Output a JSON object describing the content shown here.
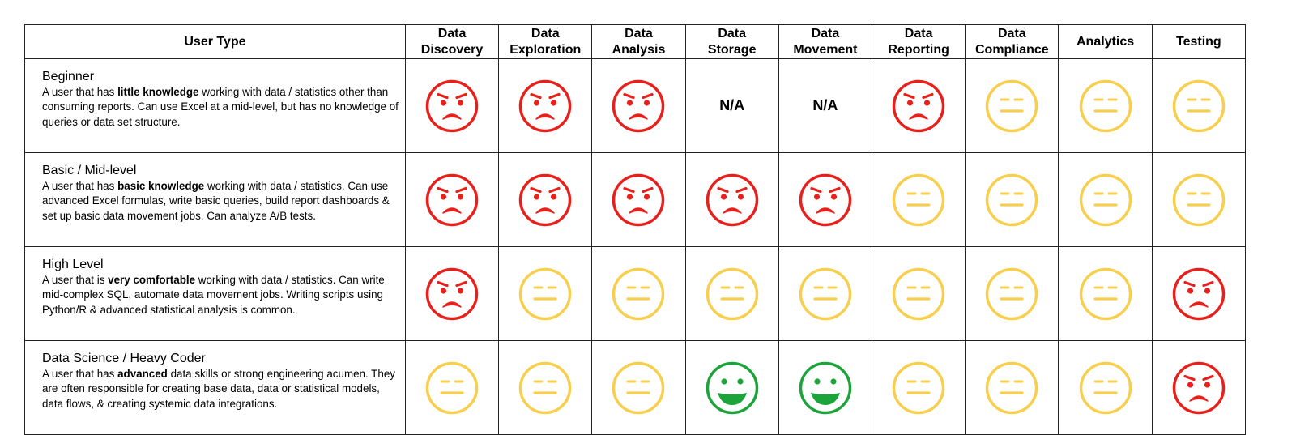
{
  "colors": {
    "frown": "#e8201c",
    "neutral": "#f7cf4d",
    "happy": "#1ca33a"
  },
  "header": {
    "user_type": "User Type",
    "columns": [
      {
        "line1": "Data",
        "line2": "Discovery"
      },
      {
        "line1": "Data",
        "line2": "Exploration"
      },
      {
        "line1": "Data",
        "line2": "Analysis"
      },
      {
        "line1": "Data",
        "line2": "Storage"
      },
      {
        "line1": "Data",
        "line2": "Movement"
      },
      {
        "line1": "Data",
        "line2": "Reporting"
      },
      {
        "line1": "Data",
        "line2": "Compliance"
      },
      {
        "line1": "Analytics",
        "line2": ""
      },
      {
        "line1": "Testing",
        "line2": ""
      }
    ]
  },
  "rows": [
    {
      "title": "Beginner",
      "desc_pre": "A user that has ",
      "desc_bold": "little knowledge",
      "desc_post": " working with data / statistics other than consuming reports. Can use Excel at a mid-level, but has no knowledge of queries or data set structure.",
      "cells": [
        "frown",
        "frown",
        "frown",
        "N/A",
        "N/A",
        "frown",
        "neutral",
        "neutral",
        "neutral"
      ]
    },
    {
      "title": "Basic / Mid-level",
      "desc_pre": "A user that has ",
      "desc_bold": "basic knowledge",
      "desc_post": " working with data / statistics. Can use advanced Excel formulas, write basic queries, build report dashboards & set up basic data movement jobs. Can analyze A/B tests.",
      "cells": [
        "frown",
        "frown",
        "frown",
        "frown",
        "frown",
        "neutral",
        "neutral",
        "neutral",
        "neutral"
      ]
    },
    {
      "title": "High Level",
      "desc_pre": "A user that is ",
      "desc_bold": "very comfortable",
      "desc_post": " working with data / statistics. Can write mid-complex SQL, automate data movement jobs. Writing scripts using Python/R & advanced statistical analysis is common.",
      "cells": [
        "frown",
        "neutral",
        "neutral",
        "neutral",
        "neutral",
        "neutral",
        "neutral",
        "neutral",
        "frown"
      ]
    },
    {
      "title": "Data Science / Heavy Coder",
      "desc_pre": "A user that has ",
      "desc_bold": "advanced",
      "desc_post": " data skills or strong engineering acumen. They are often responsible for creating base data, data or statistical models, data flows, & creating systemic data integrations.",
      "cells": [
        "neutral",
        "neutral",
        "neutral",
        "happy",
        "happy",
        "neutral",
        "neutral",
        "neutral",
        "frown"
      ]
    }
  ]
}
